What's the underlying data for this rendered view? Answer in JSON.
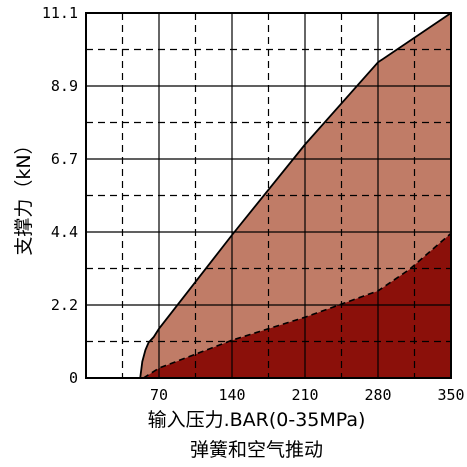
{
  "chart_data": {
    "type": "area",
    "xlabel": "输入压力.BAR(0-35MPa)",
    "xlabel_line2": "弹簧和空气推动",
    "ylabel": "支撑力（kN）",
    "xlim": [
      0,
      350
    ],
    "ylim": [
      0,
      11.1
    ],
    "x_ticks": [
      "70",
      "140",
      "210",
      "280",
      "350"
    ],
    "y_ticks": [
      "0",
      "2.2",
      "4.4",
      "6.7",
      "8.9",
      "11.1"
    ],
    "grid": true,
    "colors": {
      "upper_band": "#c07c67",
      "lower_band": "#8b100a",
      "grid": "#000000"
    },
    "series": [
      {
        "boundary": "upper",
        "line_style": "solid",
        "x": [
          52,
          54,
          57,
          60,
          65,
          70,
          140,
          210,
          280,
          350
        ],
        "y": [
          0,
          0.5,
          0.85,
          1.08,
          1.25,
          1.5,
          4.35,
          7.1,
          9.6,
          11.1
        ]
      },
      {
        "boundary": "lower",
        "line_style": "dashed",
        "x": [
          55,
          70,
          140,
          210,
          280,
          310,
          350
        ],
        "y": [
          0,
          0.3,
          1.15,
          1.85,
          2.65,
          3.3,
          4.4
        ]
      }
    ]
  }
}
